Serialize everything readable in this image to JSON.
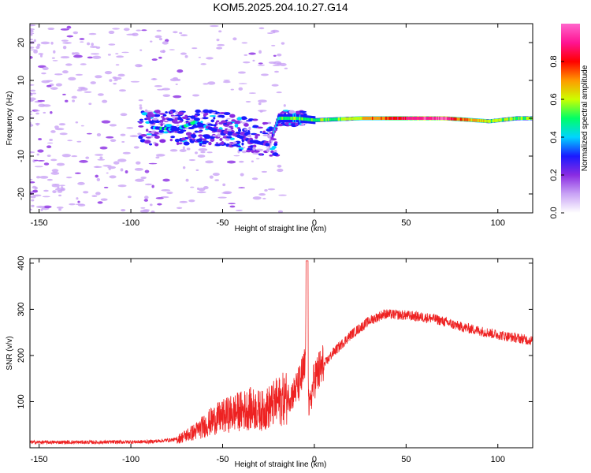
{
  "title": "KOM5.2025.204.10.27.G14",
  "chart_data": [
    {
      "type": "heatmap",
      "name": "spectrogram",
      "xlabel": "Height of straight line (km)",
      "ylabel": "Frequency (Hz)",
      "xlim": [
        -155,
        119
      ],
      "ylim": [
        -25,
        25
      ],
      "xticks": [
        -150,
        -100,
        -50,
        0,
        50,
        100
      ],
      "yticks": [
        -20,
        -10,
        0,
        10,
        20
      ],
      "colorbar": {
        "label": "Normalized spectral amplitude",
        "range": [
          0,
          1
        ],
        "ticks": [
          "0.0",
          "0.2",
          "0.4",
          "0.6",
          "0.8"
        ],
        "colors": [
          "#ffffff",
          "#c9a3f5",
          "#8a2be2",
          "#1a1aff",
          "#00d4ff",
          "#00ff66",
          "#ccff00",
          "#ff9900",
          "#ff0000",
          "#ff1493",
          "#ff66cc"
        ]
      },
      "ridge": {
        "description_points": [
          {
            "x": -88,
            "y": -2.5,
            "v": 0.35
          },
          {
            "x": -75,
            "y": -3,
            "v": 0.3
          },
          {
            "x": -65,
            "y": -1,
            "v": 0.35
          },
          {
            "x": -55,
            "y": -3,
            "v": 0.25
          },
          {
            "x": -45,
            "y": -4,
            "v": 0.2
          },
          {
            "x": -35,
            "y": -6,
            "v": 0.25
          },
          {
            "x": -25,
            "y": -7,
            "v": 0.2
          },
          {
            "x": -20,
            "y": 0,
            "v": 0.5
          },
          {
            "x": -10,
            "y": 0,
            "v": 0.55
          },
          {
            "x": 0,
            "y": -0.5,
            "v": 0.5
          },
          {
            "x": 10,
            "y": -0.3,
            "v": 0.55
          },
          {
            "x": 25,
            "y": 0,
            "v": 0.65
          },
          {
            "x": 40,
            "y": 0,
            "v": 0.8
          },
          {
            "x": 55,
            "y": 0,
            "v": 0.9
          },
          {
            "x": 70,
            "y": 0,
            "v": 0.95
          },
          {
            "x": 80,
            "y": -0.3,
            "v": 0.75
          },
          {
            "x": 95,
            "y": -0.8,
            "v": 0.6
          },
          {
            "x": 110,
            "y": 0,
            "v": 0.55
          }
        ]
      }
    },
    {
      "type": "line",
      "name": "snr",
      "xlabel": "Height of straight line (km)",
      "ylabel": "SNR (v/v)",
      "xlim": [
        -155,
        119
      ],
      "ylim": [
        0,
        410
      ],
      "xticks": [
        -150,
        -100,
        -50,
        0,
        50,
        100
      ],
      "yticks": [
        100,
        200,
        300,
        400
      ],
      "color": "#ee2222",
      "trend_points": [
        {
          "x": -155,
          "y": 12
        },
        {
          "x": -120,
          "y": 12
        },
        {
          "x": -90,
          "y": 13
        },
        {
          "x": -75,
          "y": 18
        },
        {
          "x": -65,
          "y": 35
        },
        {
          "x": -55,
          "y": 60
        },
        {
          "x": -45,
          "y": 75
        },
        {
          "x": -35,
          "y": 85
        },
        {
          "x": -28,
          "y": 80
        },
        {
          "x": -20,
          "y": 100
        },
        {
          "x": -12,
          "y": 115
        },
        {
          "x": -8,
          "y": 140
        },
        {
          "x": -5,
          "y": 175
        },
        {
          "x": -4,
          "y": 410
        },
        {
          "x": -3,
          "y": 80
        },
        {
          "x": 0,
          "y": 150
        },
        {
          "x": 10,
          "y": 205
        },
        {
          "x": 20,
          "y": 245
        },
        {
          "x": 30,
          "y": 275
        },
        {
          "x": 38,
          "y": 290
        },
        {
          "x": 50,
          "y": 287
        },
        {
          "x": 65,
          "y": 280
        },
        {
          "x": 80,
          "y": 262
        },
        {
          "x": 100,
          "y": 245
        },
        {
          "x": 119,
          "y": 232
        }
      ]
    }
  ]
}
